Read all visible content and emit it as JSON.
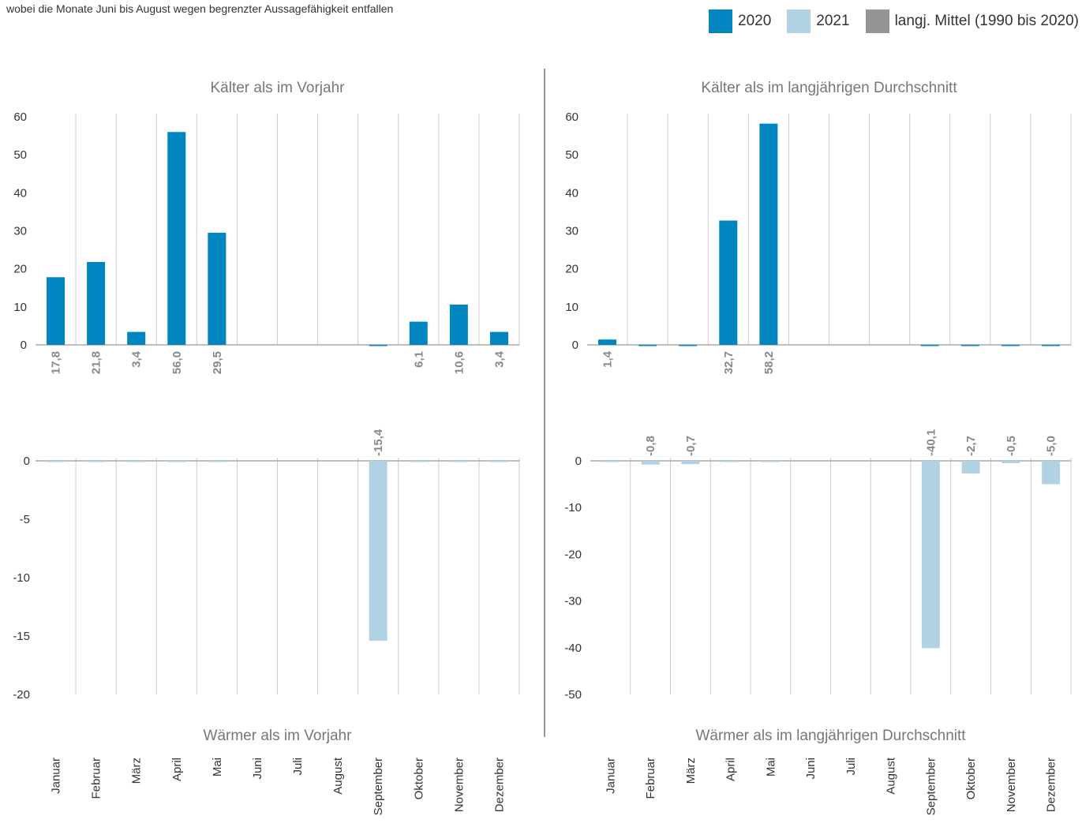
{
  "subtitle": "wobei die Monate Juni bis August wegen begrenzter Aussagefähigkeit entfallen",
  "legend": [
    {
      "label": "2020",
      "color": "#0085BF"
    },
    {
      "label": "2021",
      "color": "#B1D2E2"
    },
    {
      "label": "langj. Mittel (1990 bis 2020)",
      "color": "#959595"
    }
  ],
  "chart_data": [
    {
      "type": "bar",
      "title": "Kälter als im Vorjahr",
      "categories": [
        "Januar",
        "Februar",
        "März",
        "April",
        "Mai",
        "Juni",
        "Juli",
        "August",
        "September",
        "Oktober",
        "November",
        "Dezember"
      ],
      "series": [
        {
          "name": "2020",
          "color": "#0085BF",
          "values": [
            17.8,
            21.8,
            3.4,
            56.0,
            29.5,
            null,
            null,
            null,
            0,
            6.1,
            10.6,
            3.4
          ]
        }
      ],
      "value_labels": [
        "17,8",
        "21,8",
        "3,4",
        "56,0",
        "29,5",
        "",
        "",
        "",
        "",
        "6,1",
        "10,6",
        "3,4"
      ],
      "ylim": [
        0,
        60
      ],
      "yticks": [
        0,
        10,
        20,
        30,
        40,
        50,
        60
      ],
      "ytick_labels": [
        "0",
        "10",
        "20",
        "30",
        "40",
        "50",
        "60"
      ],
      "grid": "vertical"
    },
    {
      "type": "bar",
      "title": "Wärmer als im Vorjahr",
      "categories": [
        "Januar",
        "Februar",
        "März",
        "April",
        "Mai",
        "Juni",
        "Juli",
        "August",
        "September",
        "Oktober",
        "November",
        "Dezember"
      ],
      "series": [
        {
          "name": "2021",
          "color": "#B1D2E2",
          "values": [
            0,
            0,
            0,
            0,
            0,
            null,
            null,
            null,
            -15.4,
            0,
            0,
            0
          ]
        }
      ],
      "value_labels": [
        "",
        "",
        "",
        "",
        "",
        "",
        "",
        "",
        "-15,4",
        "",
        "",
        ""
      ],
      "ylim": [
        -20,
        0
      ],
      "yticks": [
        0,
        -5,
        -10,
        -15,
        -20
      ],
      "ytick_labels": [
        "0",
        "-5",
        "-10",
        "-15",
        "-20"
      ],
      "grid": "vertical"
    },
    {
      "type": "bar",
      "title": "Kälter als im langjährigen Durchschnitt",
      "categories": [
        "Januar",
        "Februar",
        "März",
        "April",
        "Mai",
        "Juni",
        "Juli",
        "August",
        "September",
        "Oktober",
        "November",
        "Dezember"
      ],
      "series": [
        {
          "name": "2020",
          "color": "#0085BF",
          "values": [
            1.4,
            0,
            0,
            32.7,
            58.2,
            null,
            null,
            null,
            0,
            0,
            0,
            0
          ]
        }
      ],
      "value_labels": [
        "1,4",
        "",
        "",
        "32,7",
        "58,2",
        "",
        "",
        "",
        "",
        "",
        "",
        ""
      ],
      "ylim": [
        0,
        60
      ],
      "yticks": [
        0,
        10,
        20,
        30,
        40,
        50,
        60
      ],
      "ytick_labels": [
        "0",
        "10",
        "20",
        "30",
        "40",
        "50",
        "60"
      ],
      "grid": "vertical"
    },
    {
      "type": "bar",
      "title": "Wärmer als im langjährigen Durchschnitt",
      "categories": [
        "Januar",
        "Februar",
        "März",
        "April",
        "Mai",
        "Juni",
        "Juli",
        "August",
        "September",
        "Oktober",
        "November",
        "Dezember"
      ],
      "series": [
        {
          "name": "2021",
          "color": "#B1D2E2",
          "values": [
            0,
            -0.8,
            -0.7,
            0,
            0,
            null,
            null,
            null,
            -40.1,
            -2.7,
            -0.5,
            -5.0
          ]
        }
      ],
      "value_labels": [
        "",
        "-0,8",
        "-0,7",
        "",
        "",
        "",
        "",
        "",
        "-40,1",
        "-2,7",
        "-0,5",
        "-5,0"
      ],
      "ylim": [
        -50,
        0
      ],
      "yticks": [
        0,
        -10,
        -20,
        -30,
        -40,
        -50
      ],
      "ytick_labels": [
        "0",
        "-10",
        "-20",
        "-30",
        "-40",
        "-50"
      ],
      "grid": "vertical"
    }
  ]
}
